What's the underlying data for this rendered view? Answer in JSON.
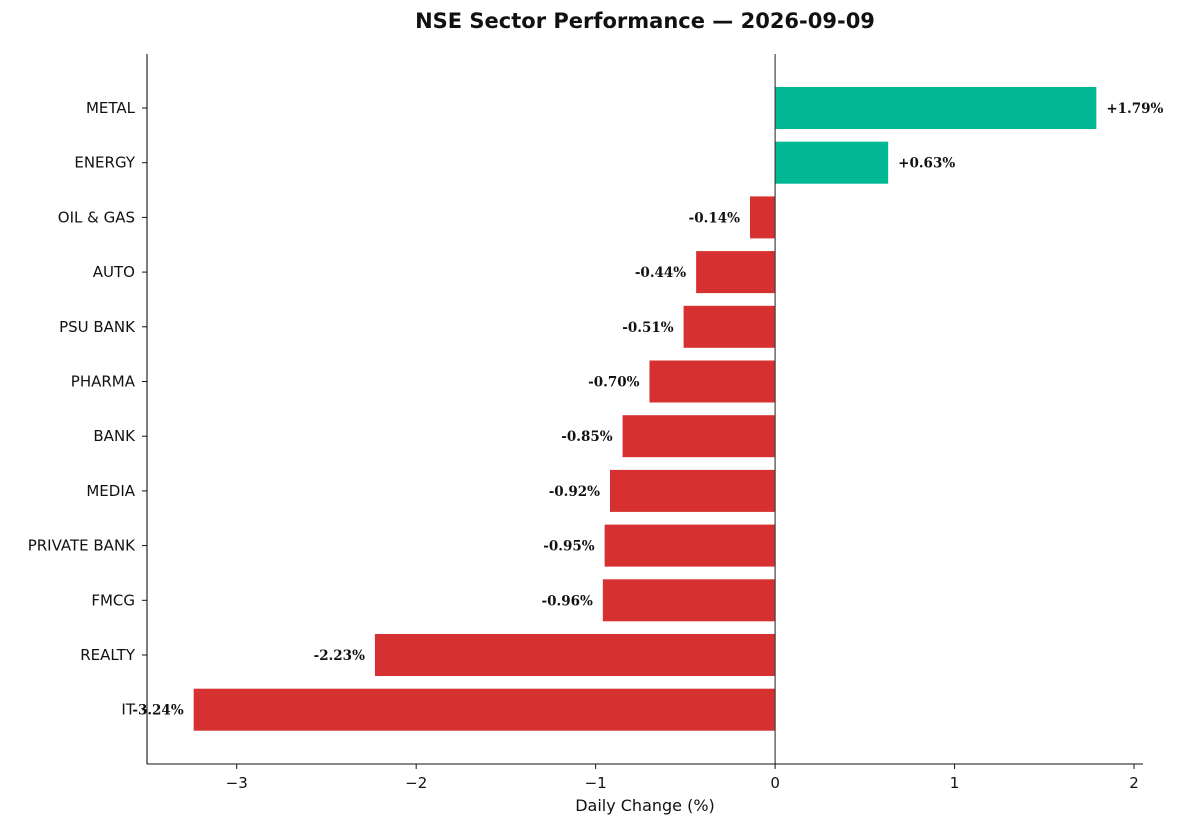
{
  "chart_data": {
    "type": "bar",
    "orientation": "horizontal",
    "title": "NSE Sector Performance — 2026-09-09",
    "xlabel": "Daily Change (%)",
    "ylabel": "",
    "categories": [
      "METAL",
      "ENERGY",
      "OIL & GAS",
      "AUTO",
      "PSU BANK",
      "PHARMA",
      "BANK",
      "MEDIA",
      "PRIVATE BANK",
      "FMCG",
      "REALTY",
      "IT"
    ],
    "values": [
      1.79,
      0.63,
      -0.14,
      -0.44,
      -0.51,
      -0.7,
      -0.85,
      -0.92,
      -0.95,
      -0.96,
      -2.23,
      -3.24
    ],
    "data_labels": [
      "+1.79%",
      "+0.63%",
      "-0.14%",
      "-0.44%",
      "-0.51%",
      "-0.70%",
      "-0.85%",
      "-0.92%",
      "-0.95%",
      "-0.96%",
      "-2.23%",
      "-3.24%"
    ],
    "xlim": [
      -3.5,
      2.05
    ],
    "x_ticks": [
      -3,
      -2,
      -1,
      0,
      1,
      2
    ],
    "x_tick_labels": [
      "−3",
      "−2",
      "−1",
      "0",
      "1",
      "2"
    ],
    "colors": {
      "positive": "#00b894",
      "negative": "#d63031",
      "zero_line": "#333333"
    },
    "grid": false,
    "legend": "none"
  }
}
